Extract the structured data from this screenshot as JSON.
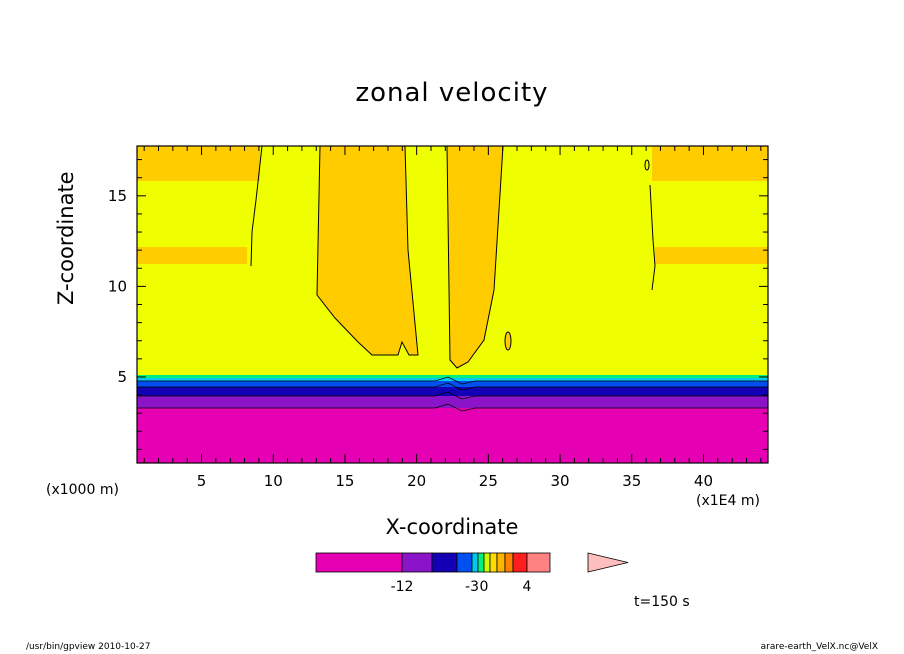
{
  "chart_data": {
    "type": "heatmap",
    "title": "zonal velocity",
    "xlabel": "X-coordinate",
    "ylabel": "Z-coordinate",
    "x_unit_label": "(x1000 m)",
    "x_tick_unit_label": "(x1E4 m)",
    "xlim": [
      0.5,
      44.5
    ],
    "ylim": [
      0.25,
      17.75
    ],
    "x_ticks": [
      5,
      10,
      15,
      20,
      25,
      30,
      35,
      40
    ],
    "y_ticks": [
      5,
      10,
      15
    ],
    "colorbar_labels": [
      "-12",
      "-3",
      "0",
      "4"
    ],
    "time_label": "t=150 s",
    "colorbar_colors": [
      "#e600b4",
      "#8c14c8",
      "#1400b4",
      "#0050f0",
      "#00c8f0",
      "#00f080",
      "#c8ff00",
      "#ffdc00",
      "#ffb400",
      "#ff8200",
      "#ff1e1e",
      "#ff8282",
      "#ffbebe"
    ],
    "field_colors": {
      "bottom_layer": "#e600b4",
      "main": "#f0ff00",
      "positive_patch": "#ffcc00",
      "contour": "#000000"
    }
  },
  "footer": {
    "left": "/usr/bin/gpview  2010-10-27",
    "right": "arare-earth_VelX.nc@VelX"
  }
}
